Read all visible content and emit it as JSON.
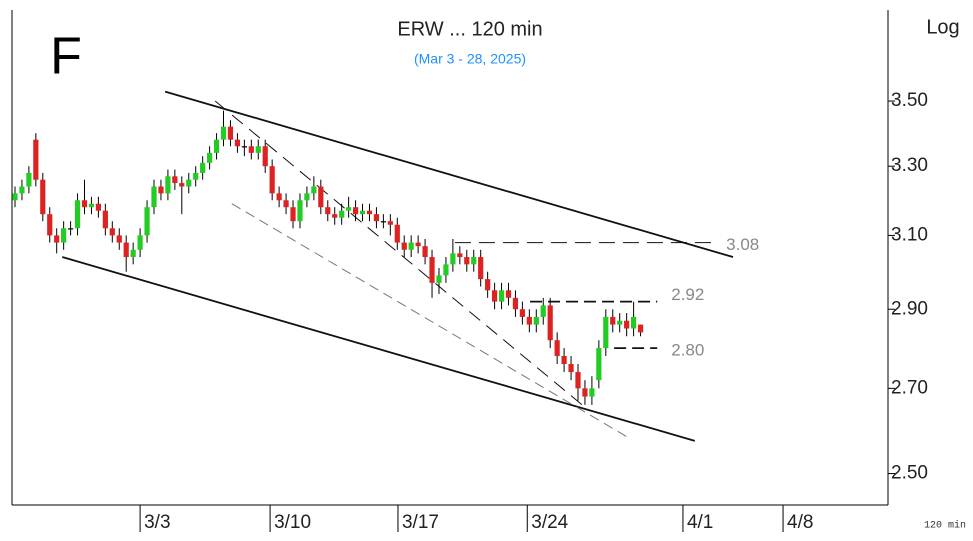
{
  "chart_data": {
    "type": "candlestick",
    "title": "ERW ... 120 min",
    "subtitle": "(Mar 3 - 28, 2025)",
    "panel_letter": "F",
    "scale_label": "Log",
    "interval_label": "120 min",
    "log_scale": true,
    "up_color": "#22cc22",
    "down_color": "#dd2222",
    "open": [
      3.2,
      3.22,
      3.24,
      3.38,
      3.26,
      3.16,
      3.1,
      3.08,
      3.12,
      3.12,
      3.2,
      3.18,
      3.19,
      3.17,
      3.12,
      3.1,
      3.08,
      3.04,
      3.06,
      3.1,
      3.18,
      3.24,
      3.22,
      3.27,
      3.25,
      3.24,
      3.26,
      3.28,
      3.31,
      3.34,
      3.38,
      3.42,
      3.38,
      3.36,
      3.36,
      3.34,
      3.36,
      3.3,
      3.22,
      3.2,
      3.18,
      3.14,
      3.2,
      3.22,
      3.24,
      3.18,
      3.16,
      3.15,
      3.17,
      3.18,
      3.16,
      3.17,
      3.16,
      3.14,
      3.14,
      3.13,
      3.08,
      3.06,
      3.08,
      3.07,
      3.04,
      2.97,
      2.99,
      3.02,
      3.05,
      3.04,
      3.02,
      3.04,
      2.98,
      2.95,
      2.92,
      2.95,
      2.93,
      2.9,
      2.88,
      2.86,
      2.88,
      2.91,
      2.82,
      2.78,
      2.76,
      2.74,
      2.7,
      2.68,
      2.72,
      2.8,
      2.88,
      2.86,
      2.87,
      2.85,
      2.86
    ],
    "high": [
      3.24,
      3.26,
      3.3,
      3.4,
      3.28,
      3.18,
      3.12,
      3.14,
      3.14,
      3.22,
      3.26,
      3.21,
      3.21,
      3.19,
      3.14,
      3.12,
      3.1,
      3.08,
      3.12,
      3.2,
      3.26,
      3.26,
      3.29,
      3.29,
      3.27,
      3.28,
      3.3,
      3.33,
      3.36,
      3.4,
      3.47,
      3.44,
      3.4,
      3.38,
      3.38,
      3.38,
      3.38,
      3.32,
      3.24,
      3.22,
      3.2,
      3.22,
      3.24,
      3.27,
      3.26,
      3.2,
      3.18,
      3.19,
      3.21,
      3.2,
      3.19,
      3.19,
      3.18,
      3.16,
      3.16,
      3.15,
      3.1,
      3.1,
      3.1,
      3.09,
      3.06,
      3.01,
      3.04,
      3.09,
      3.07,
      3.06,
      3.06,
      3.06,
      3.0,
      2.97,
      2.97,
      2.97,
      2.95,
      2.92,
      2.9,
      2.9,
      2.93,
      2.93,
      2.84,
      2.8,
      2.78,
      2.76,
      2.72,
      2.73,
      2.82,
      2.9,
      2.9,
      2.89,
      2.89,
      2.92,
      2.86
    ],
    "low": [
      3.18,
      3.2,
      3.22,
      3.24,
      3.14,
      3.08,
      3.05,
      3.06,
      3.1,
      3.1,
      3.16,
      3.16,
      3.15,
      3.1,
      3.08,
      3.06,
      3.0,
      3.02,
      3.04,
      3.08,
      3.16,
      3.2,
      3.2,
      3.23,
      3.16,
      3.22,
      3.24,
      3.26,
      3.29,
      3.32,
      3.36,
      3.36,
      3.34,
      3.33,
      3.32,
      3.32,
      3.28,
      3.2,
      3.18,
      3.16,
      3.12,
      3.12,
      3.18,
      3.2,
      3.16,
      3.14,
      3.13,
      3.13,
      3.15,
      3.14,
      3.14,
      3.14,
      3.12,
      3.12,
      3.1,
      3.06,
      3.04,
      3.04,
      3.05,
      3.02,
      2.93,
      2.94,
      2.97,
      3.0,
      3.02,
      3.0,
      3.0,
      2.96,
      2.93,
      2.9,
      2.9,
      2.91,
      2.88,
      2.86,
      2.84,
      2.84,
      2.86,
      2.8,
      2.76,
      2.74,
      2.72,
      2.67,
      2.66,
      2.66,
      2.7,
      2.78,
      2.84,
      2.84,
      2.83,
      2.83,
      2.83
    ],
    "close": [
      3.22,
      3.24,
      3.28,
      3.26,
      3.16,
      3.1,
      3.08,
      3.12,
      3.12,
      3.2,
      3.18,
      3.19,
      3.17,
      3.12,
      3.1,
      3.08,
      3.04,
      3.06,
      3.1,
      3.18,
      3.24,
      3.22,
      3.27,
      3.25,
      3.24,
      3.26,
      3.28,
      3.31,
      3.34,
      3.38,
      3.42,
      3.38,
      3.36,
      3.36,
      3.34,
      3.36,
      3.3,
      3.22,
      3.2,
      3.18,
      3.14,
      3.2,
      3.22,
      3.24,
      3.18,
      3.16,
      3.15,
      3.17,
      3.18,
      3.16,
      3.17,
      3.16,
      3.14,
      3.14,
      3.13,
      3.08,
      3.06,
      3.08,
      3.07,
      3.04,
      2.97,
      2.99,
      3.02,
      3.05,
      3.04,
      3.02,
      3.04,
      2.98,
      2.95,
      2.92,
      2.95,
      2.93,
      2.9,
      2.88,
      2.86,
      2.88,
      2.91,
      2.82,
      2.78,
      2.76,
      2.74,
      2.7,
      2.68,
      2.7,
      2.8,
      2.88,
      2.86,
      2.87,
      2.85,
      2.88,
      2.84
    ],
    "xlim": [
      -0.43,
      125.6
    ],
    "xticks": [
      {
        "value": 18,
        "label": "3/3"
      },
      {
        "value": 36.7,
        "label": "3/10"
      },
      {
        "value": 55.1,
        "label": "3/17"
      },
      {
        "value": 73.7,
        "label": "3/24"
      },
      {
        "value": 96.1,
        "label": "4/1"
      },
      {
        "value": 110.5,
        "label": "4/8"
      }
    ],
    "ylim": [
      2.43,
      3.8
    ],
    "yticks": [
      {
        "value": 2.5,
        "label": "2.50"
      },
      {
        "value": 2.7,
        "label": "2.70"
      },
      {
        "value": 2.9,
        "label": "2.90"
      },
      {
        "value": 3.1,
        "label": "3.10"
      },
      {
        "value": 3.3,
        "label": "3.30"
      },
      {
        "value": 3.5,
        "label": "3.50"
      }
    ],
    "trendlines": [
      {
        "x": [
          21.6,
          103.3
        ],
        "y": [
          3.53,
          3.04
        ],
        "dash": "solid"
      },
      {
        "x": [
          6.8,
          97.8
        ],
        "y": [
          3.04,
          2.575
        ],
        "dash": "solid"
      },
      {
        "x": [
          28.8,
          81.6
        ],
        "y": [
          3.5,
          2.66
        ],
        "dash": "long"
      },
      {
        "x": [
          31.2,
          88.5
        ],
        "y": [
          3.19,
          2.58
        ],
        "dash": "thin"
      }
    ],
    "levels": [
      {
        "value": 3.08,
        "label": "3.08",
        "x": [
          63.3,
          100.3
        ]
      },
      {
        "value": 2.92,
        "label": "2.92",
        "x": [
          74.1,
          92.4
        ]
      },
      {
        "value": 2.8,
        "label": "2.80",
        "x": [
          86.2,
          92.4
        ]
      }
    ]
  }
}
